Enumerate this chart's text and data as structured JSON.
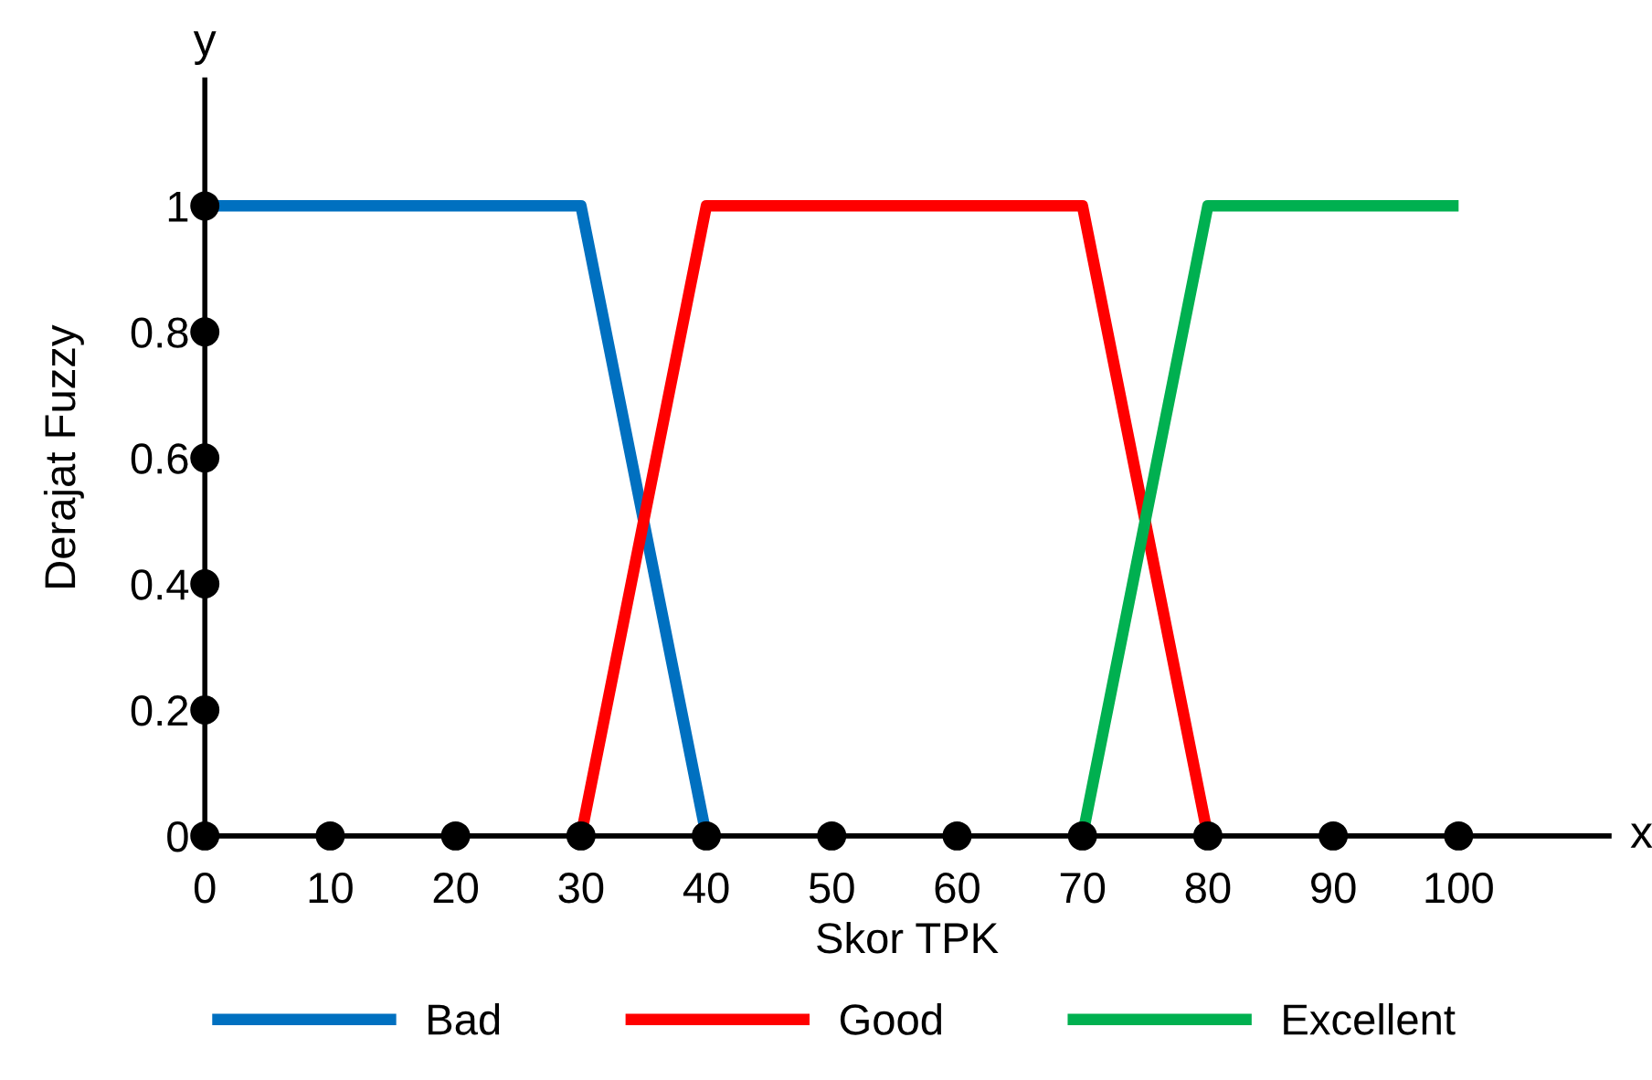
{
  "chart_data": {
    "type": "line",
    "xlabel": "Skor TPK",
    "ylabel": "Derajat Fuzzy",
    "annotations": [
      "x",
      "y"
    ],
    "xlim": [
      0,
      112
    ],
    "ylim": [
      0,
      1.2
    ],
    "xticks": [
      0,
      10,
      20,
      30,
      40,
      50,
      60,
      70,
      80,
      90,
      100
    ],
    "yticks": [
      0,
      0.2,
      0.4,
      0.6,
      0.8,
      1
    ],
    "legend": "bottom",
    "grid": false,
    "series": [
      {
        "name": "Bad",
        "color": "#0070c0",
        "x": [
          0,
          30,
          40
        ],
        "values": [
          1,
          1,
          0
        ],
        "marker": "none"
      },
      {
        "name": "Good",
        "color": "#ff0000",
        "x": [
          30,
          40,
          70,
          80
        ],
        "values": [
          0,
          1,
          1,
          0
        ],
        "marker": "none"
      },
      {
        "name": "Excellent",
        "color": "#00b050",
        "x": [
          70,
          80,
          100
        ],
        "values": [
          0,
          1,
          1
        ],
        "marker": "none"
      },
      {
        "type": "scatter",
        "color": "#000000",
        "x": [
          0,
          10,
          20,
          30,
          40,
          50,
          60,
          70,
          80,
          90,
          100
        ],
        "values": [
          0,
          0,
          0,
          0,
          0,
          0,
          0,
          0,
          0,
          0,
          0
        ],
        "marker": "circle"
      },
      {
        "type": "scatter",
        "color": "#000000",
        "x": [
          0,
          0,
          0,
          0,
          0
        ],
        "values": [
          0.2,
          0.4,
          0.6,
          0.8,
          1
        ],
        "marker": "circle"
      }
    ]
  }
}
